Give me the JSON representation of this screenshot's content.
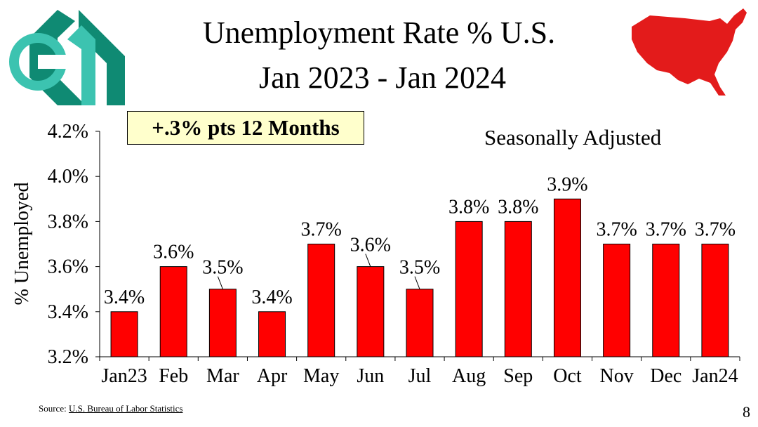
{
  "slide": {
    "title_line1": "Unemployment Rate % U.S.",
    "title_line2": "Jan 2023 - Jan 2024",
    "callout": "+.3% pts 12 Months",
    "subtitle": "Seasonally Adjusted",
    "source_prefix": "Source: ",
    "source_link": "U.S. Bureau of Labor Statistics",
    "page_number": "8"
  },
  "colors": {
    "bar": "#ff0000",
    "map": "#e31b1b",
    "logo_dark": "#0f8a73",
    "logo_light": "#3cc3b0",
    "callout_bg": "#ffffcc"
  },
  "chart_data": {
    "type": "bar",
    "ylabel": "% Unemployed",
    "categories": [
      "Jan23",
      "Feb",
      "Mar",
      "Apr",
      "May",
      "Jun",
      "Jul",
      "Aug",
      "Sep",
      "Oct",
      "Nov",
      "Dec",
      "Jan24"
    ],
    "values": [
      3.4,
      3.6,
      3.5,
      3.4,
      3.7,
      3.6,
      3.5,
      3.8,
      3.8,
      3.9,
      3.7,
      3.7,
      3.7
    ],
    "data_labels": [
      "3.4%",
      "3.6%",
      "3.5%",
      "3.4%",
      "3.7%",
      "3.6%",
      "3.5%",
      "3.8%",
      "3.8%",
      "3.9%",
      "3.7%",
      "3.7%",
      "3.7%"
    ],
    "ylim": [
      3.2,
      4.2
    ],
    "yticks": [
      3.2,
      3.4,
      3.6,
      3.8,
      4.0,
      4.2
    ],
    "ytick_labels": [
      "3.2%",
      "3.4%",
      "3.6%",
      "3.8%",
      "4.0%",
      "4.2%"
    ],
    "grid": false,
    "legend": "none"
  }
}
